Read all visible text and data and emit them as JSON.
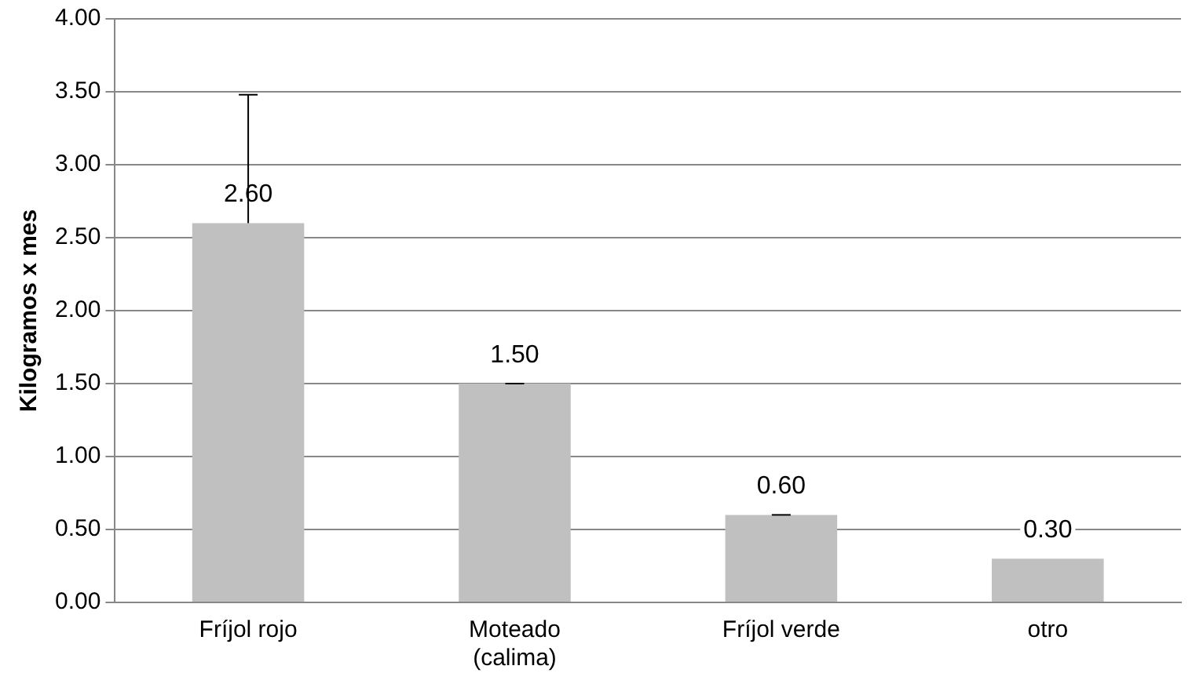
{
  "chart_data": {
    "type": "bar",
    "ylabel": "Kilogramos x mes",
    "categories": [
      "Fríjol rojo",
      "Moteado\n(calima)",
      "Fríjol verde",
      "otro"
    ],
    "values": [
      2.6,
      1.5,
      0.6,
      0.3
    ],
    "value_labels": [
      "2.60",
      "1.50",
      "0.60",
      "0.30"
    ],
    "errors": [
      [
        2.6,
        3.48
      ],
      [
        1.5,
        1.5
      ],
      [
        0.6,
        0.6
      ],
      null
    ],
    "color": "#c0c0c0",
    "ylim": [
      0,
      4
    ],
    "yticks": [
      {
        "value": 0,
        "label": "0.00"
      },
      {
        "value": 0.5,
        "label": "0.50"
      },
      {
        "value": 1,
        "label": "1.00"
      },
      {
        "value": 1.5,
        "label": "1.50"
      },
      {
        "value": 2,
        "label": "2.00"
      },
      {
        "value": 2.5,
        "label": "2.50"
      },
      {
        "value": 3,
        "label": "3.00"
      },
      {
        "value": 3.5,
        "label": "3.50"
      },
      {
        "value": 4,
        "label": "4.00"
      }
    ],
    "grid": "y",
    "legend": false
  }
}
